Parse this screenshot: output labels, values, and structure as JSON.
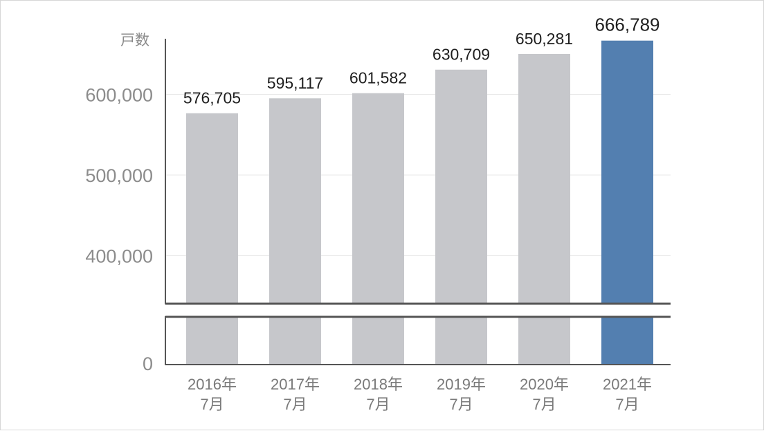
{
  "chart_data": {
    "type": "bar",
    "unit_label": "戸数",
    "categories": [
      [
        "2016年",
        "7月"
      ],
      [
        "2017年",
        "7月"
      ],
      [
        "2018年",
        "7月"
      ],
      [
        "2019年",
        "7月"
      ],
      [
        "2020年",
        "7月"
      ],
      [
        "2021年",
        "7月"
      ]
    ],
    "values": [
      576705,
      595117,
      601582,
      630709,
      650281,
      666789
    ],
    "value_labels": [
      "576,705",
      "595,117",
      "601,582",
      "630,709",
      "650,281",
      "666,789"
    ],
    "highlight_index": 5,
    "colors": {
      "bar": "#c6c7cb",
      "highlight": "#537fb0",
      "axis": "#555555",
      "grid": "#eaeaea"
    },
    "y_ticks": [
      {
        "value": 400000,
        "label": "400,000"
      },
      {
        "value": 500000,
        "label": "500,000"
      },
      {
        "value": 600000,
        "label": "600,000"
      }
    ],
    "y_zero_label": "0",
    "ylim": [
      340000,
      670000
    ],
    "axis_break": true,
    "grid": true,
    "legend": "none"
  }
}
